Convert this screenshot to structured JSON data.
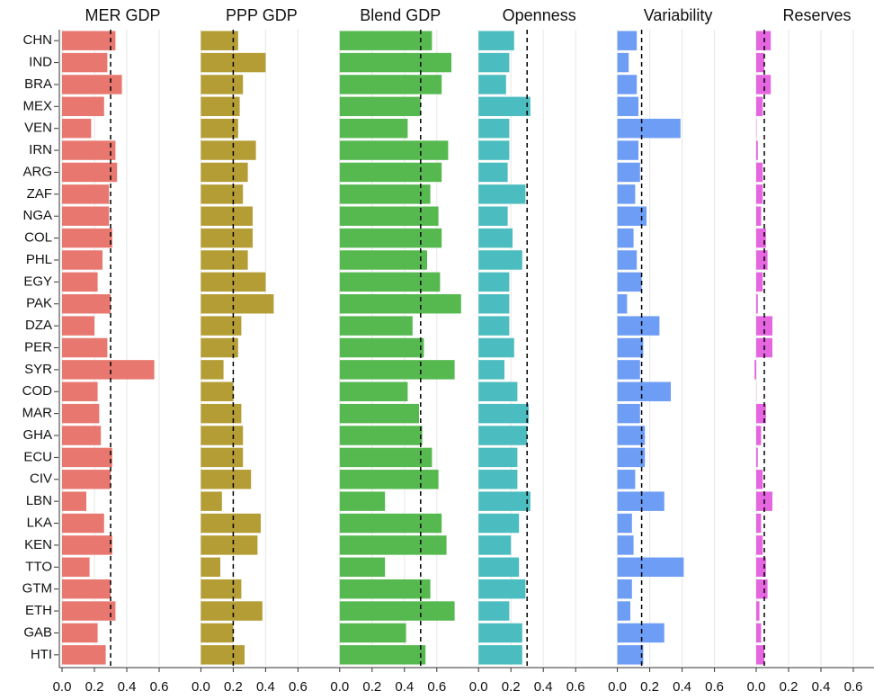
{
  "chart_data": {
    "type": "bar",
    "orientation": "horizontal",
    "categories": [
      "CHN",
      "IND",
      "BRA",
      "MEX",
      "VEN",
      "IRN",
      "ARG",
      "ZAF",
      "NGA",
      "COL",
      "PHL",
      "EGY",
      "PAK",
      "DZA",
      "PER",
      "SYR",
      "COD",
      "MAR",
      "GHA",
      "ECU",
      "CIV",
      "LBN",
      "LKA",
      "KEN",
      "TTO",
      "GTM",
      "ETH",
      "GAB",
      "HTI"
    ],
    "xlim": [
      -0.01,
      0.76
    ],
    "xticks": [
      {
        "value": 0,
        "label": "0.0"
      },
      {
        "value": 0.2,
        "label": "0.2"
      },
      {
        "value": 0.4,
        "label": "0.4"
      },
      {
        "value": 0.6,
        "label": "0.6"
      }
    ],
    "grid": true,
    "series": [
      {
        "name": "MER GDP",
        "color": "#e8786f",
        "reference": 0.3,
        "values": [
          0.33,
          0.28,
          0.37,
          0.26,
          0.18,
          0.33,
          0.34,
          0.29,
          0.29,
          0.31,
          0.25,
          0.22,
          0.3,
          0.2,
          0.28,
          0.57,
          0.22,
          0.23,
          0.24,
          0.31,
          0.3,
          0.15,
          0.26,
          0.31,
          0.17,
          0.3,
          0.33,
          0.22,
          0.27
        ]
      },
      {
        "name": "PPP GDP",
        "color": "#b49d34",
        "reference": 0.2,
        "values": [
          0.23,
          0.4,
          0.26,
          0.24,
          0.23,
          0.34,
          0.29,
          0.26,
          0.32,
          0.32,
          0.29,
          0.4,
          0.45,
          0.25,
          0.23,
          0.14,
          0.2,
          0.25,
          0.26,
          0.26,
          0.31,
          0.13,
          0.37,
          0.35,
          0.12,
          0.25,
          0.38,
          0.2,
          0.27
        ]
      },
      {
        "name": "Blend GDP",
        "color": "#55b94f",
        "reference": 0.5,
        "values": [
          0.57,
          0.69,
          0.63,
          0.5,
          0.42,
          0.67,
          0.63,
          0.56,
          0.61,
          0.63,
          0.54,
          0.62,
          0.75,
          0.45,
          0.52,
          0.71,
          0.42,
          0.49,
          0.51,
          0.57,
          0.61,
          0.28,
          0.63,
          0.66,
          0.28,
          0.56,
          0.71,
          0.41,
          0.53
        ]
      },
      {
        "name": "Openness",
        "color": "#4bbcbf",
        "reference": 0.3,
        "values": [
          0.22,
          0.19,
          0.17,
          0.32,
          0.19,
          0.19,
          0.18,
          0.29,
          0.18,
          0.21,
          0.27,
          0.19,
          0.19,
          0.19,
          0.22,
          0.16,
          0.24,
          0.31,
          0.3,
          0.24,
          0.24,
          0.32,
          0.25,
          0.2,
          0.25,
          0.29,
          0.19,
          0.27,
          0.27
        ]
      },
      {
        "name": "Variability",
        "color": "#6e9df6",
        "reference": 0.15,
        "values": [
          0.12,
          0.07,
          0.12,
          0.13,
          0.39,
          0.13,
          0.14,
          0.11,
          0.18,
          0.1,
          0.12,
          0.15,
          0.06,
          0.26,
          0.16,
          0.14,
          0.33,
          0.14,
          0.17,
          0.17,
          0.11,
          0.29,
          0.09,
          0.1,
          0.41,
          0.09,
          0.08,
          0.29,
          0.16
        ]
      },
      {
        "name": "Reserves",
        "color": "#e665e0",
        "reference": 0.05,
        "values": [
          0.09,
          0.05,
          0.09,
          0.04,
          0.002,
          0.01,
          0.04,
          0.04,
          0.03,
          0.06,
          0.07,
          0.04,
          0.01,
          0.1,
          0.1,
          -0.01,
          0.001,
          0.06,
          0.03,
          0.01,
          0.04,
          0.1,
          0.03,
          0.04,
          0.06,
          0.07,
          0.02,
          0.03,
          0.05
        ]
      }
    ]
  }
}
